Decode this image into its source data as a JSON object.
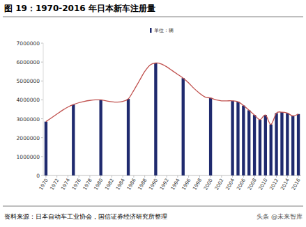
{
  "chart_data": {
    "type": "bar",
    "title": "图 19：1970-2016 年日本新车注册量",
    "source": "资料来源：日本自动车工业协会，国信证券经济研究所整理",
    "annotation": "头条 @未来智库",
    "categories": [
      "1970",
      null,
      "1972",
      null,
      "1974",
      null,
      "1976",
      null,
      "1978",
      null,
      "1980",
      null,
      "1982",
      null,
      "1984",
      null,
      "1986",
      null,
      "1988",
      null,
      "1990",
      null,
      "1992",
      null,
      "1994",
      null,
      "1996",
      null,
      "1998",
      null,
      "2000",
      null,
      "2002",
      null,
      "2004",
      null,
      "2006",
      null,
      "2008",
      null,
      "2010",
      null,
      "2012",
      null,
      "2014",
      null,
      "2016"
    ],
    "series": [
      {
        "name": "单位：辆",
        "type": "bar",
        "color": "#1f2a6e",
        "values": [
          2850000,
          null,
          null,
          null,
          null,
          3750000,
          null,
          null,
          null,
          null,
          4000000,
          null,
          null,
          null,
          null,
          4050000,
          null,
          null,
          null,
          null,
          5950000,
          null,
          null,
          null,
          null,
          5150000,
          null,
          null,
          null,
          null,
          4100000,
          null,
          null,
          null,
          3950000,
          3900000,
          3700000,
          3450000,
          3200000,
          2950000,
          3200000,
          2700000,
          3300000,
          3350000,
          3300000,
          3150000,
          3250000
        ]
      },
      {
        "type": "line",
        "color": "#c0504d",
        "line_style": "solid",
        "values": [
          2850000,
          3050000,
          3250000,
          3450000,
          3620000,
          3750000,
          3850000,
          3920000,
          3970000,
          4000000,
          4000000,
          3950000,
          3900000,
          3880000,
          3920000,
          4050000,
          4500000,
          5000000,
          5500000,
          5850000,
          5950000,
          5900000,
          5750000,
          5550000,
          5350000,
          5150000,
          4900000,
          4600000,
          4350000,
          4150000,
          4100000,
          4000000,
          3950000,
          3950000,
          3950000,
          3900000,
          3700000,
          3450000,
          3200000,
          2950000,
          3200000,
          2700000,
          3300000,
          3350000,
          3300000,
          3150000,
          3250000
        ]
      }
    ],
    "ylim": [
      0,
      7000000
    ],
    "yticks": [
      0,
      1000000,
      2000000,
      3000000,
      4000000,
      5000000,
      6000000,
      7000000
    ],
    "grid": false,
    "legend": "top"
  }
}
